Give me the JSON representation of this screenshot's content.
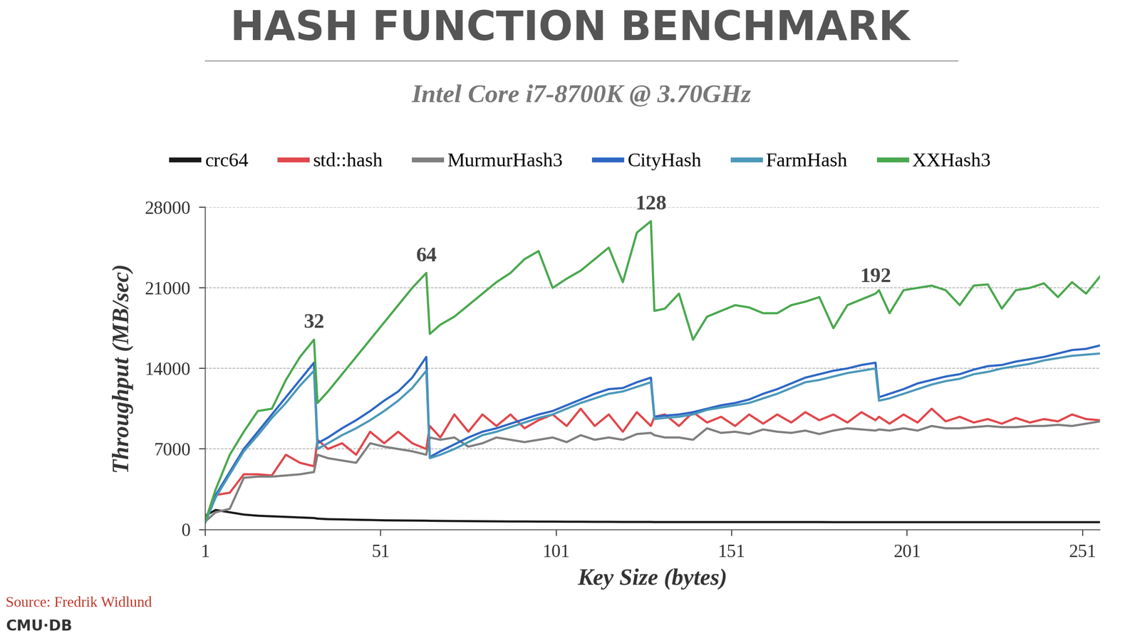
{
  "chart_data": {
    "type": "line",
    "title": "HASH FUNCTION BENCHMARK",
    "subtitle": "Intel Core i7-8700K @ 3.70GHz",
    "x_label": "Key Size (bytes)",
    "y_label": "Throughput (MB/sec)",
    "source": "Source: Fredrik Widlund",
    "footer": "CMU·DB",
    "xlim": [
      1,
      256
    ],
    "xticks": [
      1,
      51,
      101,
      151,
      201,
      251
    ],
    "ylim": [
      0,
      28000
    ],
    "yticks": [
      0,
      7000,
      14000,
      21000,
      28000
    ],
    "grid": "y",
    "legend": "top",
    "annotations": [
      {
        "text": "32",
        "x": 32
      },
      {
        "text": "64",
        "x": 64
      },
      {
        "text": "128",
        "x": 128
      },
      {
        "text": "192",
        "x": 192
      }
    ],
    "x": [
      1,
      4,
      8,
      12,
      16,
      20,
      24,
      28,
      32,
      33,
      36,
      40,
      44,
      48,
      52,
      56,
      60,
      64,
      65,
      68,
      72,
      76,
      80,
      84,
      88,
      92,
      96,
      100,
      104,
      108,
      112,
      116,
      120,
      124,
      128,
      129,
      132,
      136,
      140,
      144,
      148,
      152,
      156,
      160,
      164,
      168,
      172,
      176,
      180,
      184,
      188,
      192,
      193,
      196,
      200,
      204,
      208,
      212,
      216,
      220,
      224,
      228,
      232,
      236,
      240,
      244,
      248,
      252,
      256
    ],
    "series": [
      {
        "name": "crc64",
        "color": "#1a1a1a",
        "values": [
          1200,
          1700,
          1500,
          1300,
          1200,
          1150,
          1100,
          1050,
          1000,
          950,
          900,
          880,
          850,
          830,
          800,
          790,
          780,
          770,
          760,
          750,
          740,
          730,
          720,
          710,
          700,
          700,
          690,
          690,
          680,
          680,
          670,
          670,
          660,
          660,
          660,
          650,
          650,
          650,
          650,
          650,
          650,
          650,
          650,
          650,
          650,
          650,
          650,
          650,
          640,
          640,
          640,
          640,
          640,
          640,
          640,
          640,
          640,
          640,
          640,
          640,
          640,
          640,
          640,
          640,
          640,
          640,
          640,
          640,
          640
        ]
      },
      {
        "name": "std::hash",
        "color": "#e0474c",
        "values": [
          700,
          3000,
          3200,
          4800,
          4800,
          4700,
          6500,
          5800,
          5500,
          7800,
          7000,
          7500,
          6500,
          8500,
          7500,
          8500,
          7500,
          7000,
          9000,
          8000,
          10000,
          8500,
          10000,
          9000,
          10000,
          8800,
          9500,
          10000,
          9000,
          10500,
          9000,
          10000,
          8500,
          10200,
          9000,
          9800,
          10000,
          9000,
          10200,
          9300,
          9800,
          9000,
          10000,
          9200,
          10000,
          9300,
          10200,
          9500,
          10000,
          9300,
          10200,
          9500,
          9800,
          9200,
          10000,
          9300,
          10500,
          9400,
          9800,
          9300,
          9600,
          9200,
          9700,
          9300,
          9600,
          9400,
          10000,
          9600,
          9500
        ]
      },
      {
        "name": "MurmurHash3",
        "color": "#7f7f7f",
        "values": [
          700,
          1500,
          1800,
          4500,
          4600,
          4600,
          4700,
          4800,
          5000,
          6500,
          6200,
          6000,
          5800,
          7500,
          7200,
          7000,
          6800,
          6500,
          8000,
          7800,
          8000,
          7200,
          7500,
          8000,
          7800,
          7600,
          7800,
          8000,
          7600,
          8200,
          7800,
          8000,
          7800,
          8300,
          8400,
          8200,
          8000,
          8000,
          7800,
          8800,
          8400,
          8500,
          8300,
          8700,
          8500,
          8400,
          8600,
          8300,
          8600,
          8800,
          8700,
          8600,
          8700,
          8600,
          8800,
          8600,
          9000,
          8800,
          8800,
          8900,
          9000,
          8900,
          8900,
          9000,
          9000,
          9100,
          9000,
          9200,
          9400
        ]
      },
      {
        "name": "CityHash",
        "color": "#2e67c4",
        "values": [
          700,
          3000,
          5000,
          7000,
          8500,
          10000,
          11500,
          13000,
          14500,
          7500,
          8000,
          8800,
          9500,
          10300,
          11200,
          12000,
          13200,
          15000,
          6300,
          6800,
          7400,
          8000,
          8500,
          8800,
          9200,
          9600,
          10000,
          10300,
          10800,
          11300,
          11800,
          12200,
          12300,
          12800,
          13200,
          9800,
          9900,
          10000,
          10200,
          10500,
          10800,
          11000,
          11300,
          11800,
          12200,
          12700,
          13200,
          13500,
          13800,
          14000,
          14300,
          14500,
          11500,
          11800,
          12200,
          12700,
          13000,
          13300,
          13500,
          13900,
          14200,
          14300,
          14600,
          14800,
          15000,
          15300,
          15600,
          15700,
          16000
        ]
      },
      {
        "name": "FarmHash",
        "color": "#4b98b9",
        "values": [
          600,
          2800,
          4800,
          6800,
          8200,
          9700,
          11000,
          12500,
          13800,
          7000,
          7500,
          8200,
          8800,
          9500,
          10300,
          11200,
          12300,
          13800,
          6200,
          6500,
          7000,
          7600,
          8200,
          8500,
          8900,
          9300,
          9700,
          10000,
          10500,
          11000,
          11400,
          11800,
          12000,
          12400,
          12800,
          9600,
          9700,
          9800,
          10000,
          10400,
          10600,
          10800,
          11000,
          11400,
          11800,
          12300,
          12800,
          13000,
          13300,
          13600,
          13800,
          14000,
          11200,
          11400,
          11800,
          12200,
          12600,
          12900,
          13100,
          13500,
          13700,
          14000,
          14200,
          14400,
          14700,
          14900,
          15100,
          15200,
          15300
        ]
      },
      {
        "name": "XXHash3",
        "color": "#4aa84e",
        "values": [
          700,
          3500,
          6500,
          8500,
          10300,
          10500,
          13000,
          15000,
          16500,
          11000,
          12000,
          13500,
          15000,
          16500,
          18000,
          19500,
          21000,
          22300,
          17000,
          17800,
          18500,
          19500,
          20500,
          21500,
          22300,
          23500,
          24200,
          21000,
          21800,
          22500,
          23500,
          24500,
          21500,
          25800,
          26800,
          19000,
          19200,
          20500,
          16500,
          18500,
          19000,
          19500,
          19300,
          18800,
          18800,
          19500,
          19800,
          20200,
          17500,
          19500,
          20000,
          20500,
          20800,
          18800,
          20800,
          21000,
          21200,
          20800,
          19500,
          21200,
          21300,
          19200,
          20800,
          21000,
          21400,
          20200,
          21500,
          20500,
          22000
        ]
      }
    ]
  }
}
